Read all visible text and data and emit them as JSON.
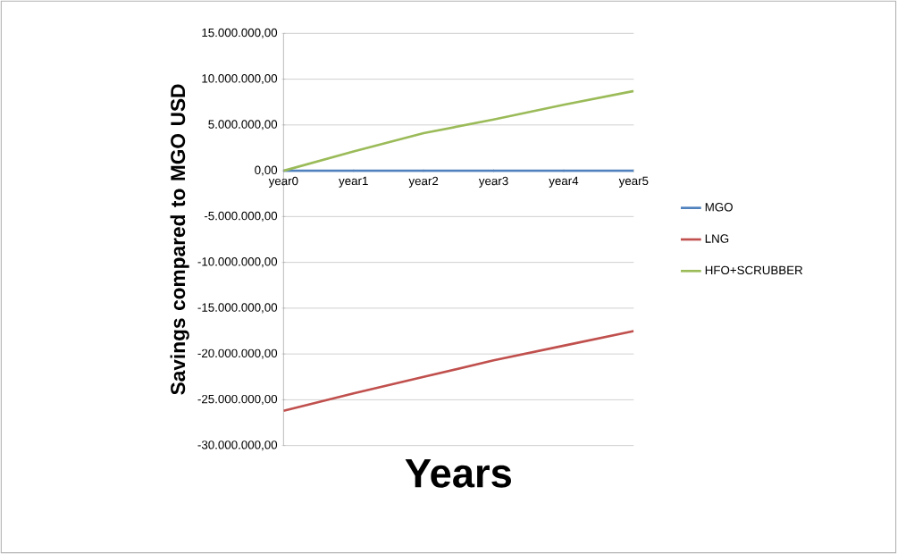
{
  "chart_data": {
    "type": "line",
    "xlabel": "Years",
    "ylabel": "Savings compared to MGO USD",
    "categories": [
      "year0",
      "year1",
      "year2",
      "year3",
      "year4",
      "year5"
    ],
    "series": [
      {
        "name": "MGO",
        "color": "#4f81bd",
        "values": [
          0,
          0,
          0,
          0,
          0,
          0
        ]
      },
      {
        "name": "LNG",
        "color": "#c0504d",
        "values": [
          -26200000,
          -24300000,
          -22500000,
          -20700000,
          -19100000,
          -17500000
        ]
      },
      {
        "name": "HFO+SCRUBBER",
        "color": "#9bbb59",
        "values": [
          0,
          2100000,
          4100000,
          5600000,
          7200000,
          8700000
        ]
      }
    ],
    "ylim": [
      -30000000,
      15000000
    ],
    "yticks": [
      {
        "value": -30000000,
        "label": "-30.000.000,00"
      },
      {
        "value": -25000000,
        "label": "-25.000.000,00"
      },
      {
        "value": -20000000,
        "label": "-20.000.000,00"
      },
      {
        "value": -15000000,
        "label": "-15.000.000,00"
      },
      {
        "value": -10000000,
        "label": "-10.000.000,00"
      },
      {
        "value": -5000000,
        "label": "-5.000.000,00"
      },
      {
        "value": 0,
        "label": "0,00"
      },
      {
        "value": 5000000,
        "label": "5.000.000,00"
      },
      {
        "value": 10000000,
        "label": "10.000.000,00"
      },
      {
        "value": 15000000,
        "label": "15.000.000,00"
      }
    ],
    "grid": "y",
    "legend": "right",
    "marker": "none",
    "line_style": "solid"
  }
}
